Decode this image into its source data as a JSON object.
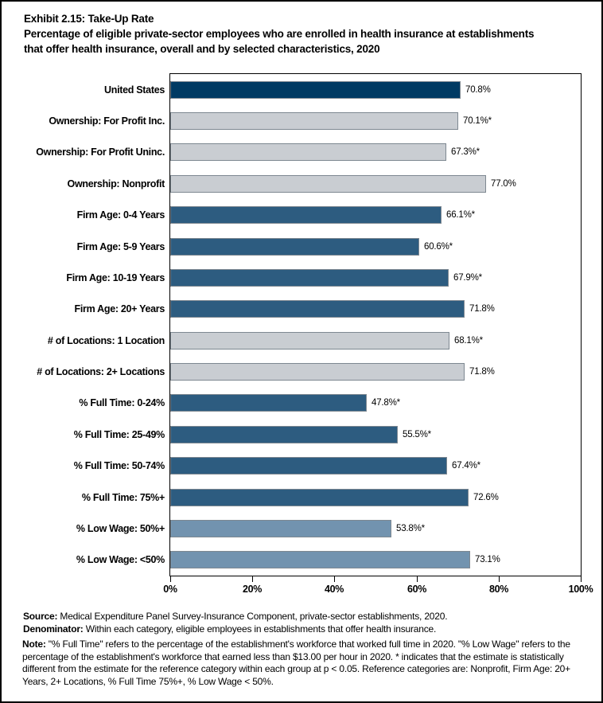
{
  "chart_data": {
    "type": "bar",
    "orientation": "horizontal",
    "title": "Exhibit 2.15: Take-Up Rate",
    "subtitle": "Percentage of eligible private-sector employees who are enrolled in health insurance at establishments that offer health insurance, overall and by selected characteristics, 2020",
    "xlabel": "",
    "ylabel": "",
    "xlim": [
      0,
      100
    ],
    "grid": false,
    "legend": "none",
    "categories": [
      "United States",
      "Ownership: For Profit Inc.",
      "Ownership: For Profit Uninc.",
      "Ownership: Nonprofit",
      "Firm Age: 0-4 Years",
      "Firm Age: 5-9 Years",
      "Firm Age: 10-19 Years",
      "Firm Age: 20+ Years",
      "# of Locations: 1 Location",
      "# of Locations: 2+ Locations",
      "% Full Time: 0-24%",
      "% Full Time: 25-49%",
      "% Full Time: 50-74%",
      "% Full Time: 75%+",
      "% Low Wage: 50%+",
      "% Low Wage: <50%"
    ],
    "values": [
      70.8,
      70.1,
      67.3,
      77.0,
      66.1,
      60.6,
      67.9,
      71.8,
      68.1,
      71.8,
      47.8,
      55.5,
      67.4,
      72.6,
      53.8,
      73.1
    ],
    "value_labels": [
      "70.8%",
      "70.1%*",
      "67.3%*",
      "77.0%",
      "66.1%*",
      "60.6%*",
      "67.9%*",
      "71.8%",
      "68.1%*",
      "71.8%",
      "47.8%*",
      "55.5%*",
      "67.4%*",
      "72.6%",
      "53.8%*",
      "73.1%"
    ],
    "color_groups": [
      "navy",
      "gray",
      "gray",
      "gray",
      "blue",
      "blue",
      "blue",
      "blue",
      "gray",
      "gray",
      "blue",
      "blue",
      "blue",
      "blue",
      "steel",
      "steel"
    ],
    "colors": {
      "navy": "#003A63",
      "gray": "#C9CDD2",
      "blue": "#2D5C80",
      "steel": "#7293AF",
      "bar_border": "#7E8891"
    },
    "x_axis": {
      "ticks": [
        "0%",
        "20%",
        "40%",
        "60%",
        "80%",
        "100%"
      ],
      "tick_values": [
        0,
        20,
        40,
        60,
        80,
        100
      ]
    }
  },
  "footer": {
    "source_label": "Source:",
    "source_text": " Medical Expenditure Panel Survey-Insurance Component, private-sector establishments, 2020.",
    "denominator_label": "Denominator:",
    "denominator_text": " Within each category, eligible employees in establishments that offer health insurance.",
    "note_label": "Note:",
    "note_text": " \"% Full Time\" refers to the percentage of the establishment's workforce that worked full time in 2020. \"% Low Wage\" refers to the percentage of the establishment's workforce that earned less than $13.00 per hour in 2020. * indicates that the estimate is statistically different from the estimate for the reference category within each group at p < 0.05.  Reference categories are: Nonprofit, Firm Age: 20+ Years, 2+ Locations, % Full Time 75%+, % Low Wage < 50%."
  }
}
